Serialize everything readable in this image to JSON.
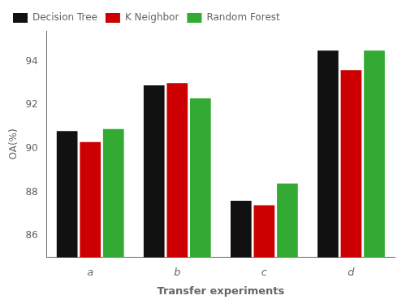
{
  "chart_data": {
    "type": "bar",
    "xlabel": "Transfer experiments",
    "ylabel": "OA(%)",
    "categories": [
      "a",
      "b",
      "c",
      "d"
    ],
    "series": [
      {
        "name": "Decision Tree",
        "color": "#111111",
        "values": [
          90.8,
          92.9,
          87.6,
          94.5
        ]
      },
      {
        "name": "K Neighbor",
        "color": "#cc0000",
        "values": [
          90.3,
          93.0,
          87.4,
          93.6
        ]
      },
      {
        "name": "Random Forest",
        "color": "#33aa33",
        "values": [
          90.9,
          92.3,
          88.4,
          94.5
        ]
      }
    ],
    "ylim": [
      85.0,
      95.4
    ],
    "yticks": [
      86,
      88,
      90,
      92,
      94
    ],
    "grid": false,
    "legend": "upper left"
  }
}
